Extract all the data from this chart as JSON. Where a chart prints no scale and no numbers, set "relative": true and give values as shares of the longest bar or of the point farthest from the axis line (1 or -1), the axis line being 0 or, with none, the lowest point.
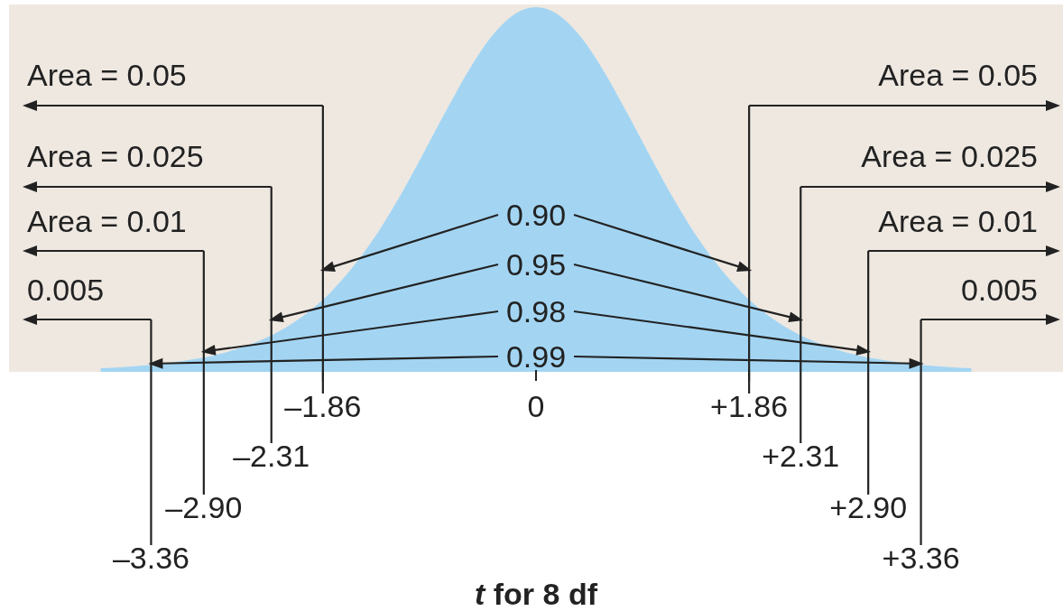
{
  "chart_data": {
    "type": "area",
    "relative": true,
    "xlabel": "t for 8 df",
    "color": "#a3d5f3",
    "x": [
      -3.8,
      -3.6,
      -3.4,
      -3.2,
      -3.0,
      -2.8,
      -2.6,
      -2.4,
      -2.2,
      -2.0,
      -1.8,
      -1.6,
      -1.4,
      -1.2,
      -1.0,
      -0.8,
      -0.6,
      -0.4,
      -0.2,
      0,
      0.2,
      0.4,
      0.6,
      0.8,
      1.0,
      1.2,
      1.4,
      1.6,
      1.8,
      2.0,
      2.2,
      2.4,
      2.6,
      2.8,
      3.0,
      3.2,
      3.4,
      3.6,
      3.8
    ],
    "values": [
      0.01,
      0.013,
      0.018,
      0.025,
      0.034,
      0.046,
      0.064,
      0.087,
      0.119,
      0.161,
      0.216,
      0.287,
      0.373,
      0.475,
      0.589,
      0.707,
      0.82,
      0.915,
      0.978,
      1,
      0.978,
      0.915,
      0.82,
      0.707,
      0.589,
      0.475,
      0.373,
      0.287,
      0.216,
      0.161,
      0.119,
      0.087,
      0.064,
      0.046,
      0.034,
      0.025,
      0.018,
      0.013,
      0.01
    ],
    "xlim": [
      -4.6,
      4.6
    ],
    "xticks": [
      {
        "value": -1.86,
        "label": "–1.86"
      },
      0,
      {
        "value": 1.86,
        "label": "+1.86"
      }
    ],
    "ref_lines": [
      {
        "axis": "x",
        "value": -1.86
      },
      {
        "axis": "x",
        "value": -2.31,
        "label": "–2.31"
      },
      {
        "axis": "x",
        "value": -2.9,
        "label": "–2.90"
      },
      {
        "axis": "x",
        "value": -3.36,
        "label": "–3.36"
      },
      {
        "axis": "x",
        "value": 1.86
      },
      {
        "axis": "x",
        "value": 2.31,
        "label": "+2.31"
      },
      {
        "axis": "x",
        "value": 2.9,
        "label": "+2.90"
      },
      {
        "axis": "x",
        "value": 3.36,
        "label": "+3.36"
      }
    ],
    "annotations": [
      "Area = 0.05",
      "Area = 0.025",
      "Area = 0.01",
      "0.005",
      "Area = 0.05",
      "Area = 0.025",
      "Area = 0.01",
      "0.005",
      "0.90",
      "0.95",
      "0.98",
      "0.99"
    ]
  }
}
